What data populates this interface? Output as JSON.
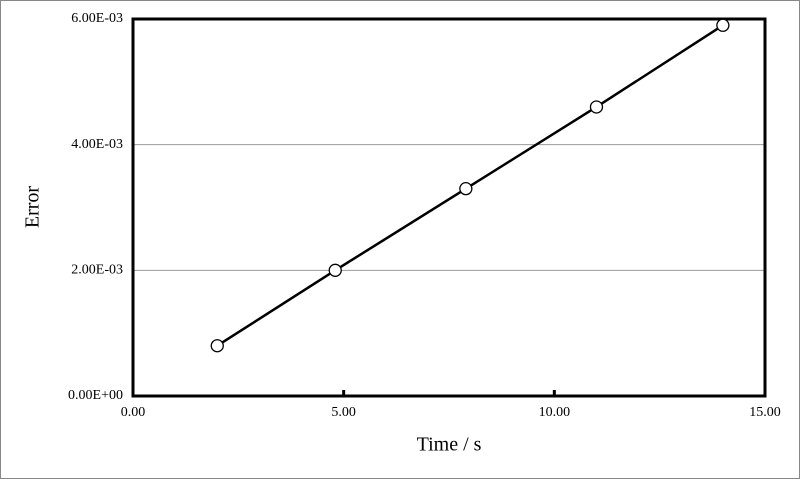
{
  "chart_data": {
    "type": "line",
    "x_label": "Time / s",
    "y_label": "Error",
    "x": [
      2.0,
      4.8,
      7.9,
      11.0,
      14.0
    ],
    "values": [
      0.0008,
      0.002,
      0.0033,
      0.0046,
      0.0059
    ],
    "color": "#000000",
    "xlim": [
      0,
      15
    ],
    "xticks": [
      {
        "value": 0,
        "label": "0.00"
      },
      {
        "value": 5,
        "label": "5.00"
      },
      {
        "value": 10,
        "label": "10.00"
      },
      {
        "value": 15,
        "label": "15.00"
      }
    ],
    "ylim": [
      0,
      0.006
    ],
    "yticks": [
      {
        "value": 0,
        "label": "0.00E+00"
      },
      {
        "value": 0.002,
        "label": "2.00E-03"
      },
      {
        "value": 0.004,
        "label": "4.00E-03"
      },
      {
        "value": 0.006,
        "label": "6.00E-03"
      }
    ],
    "grid": true
  }
}
